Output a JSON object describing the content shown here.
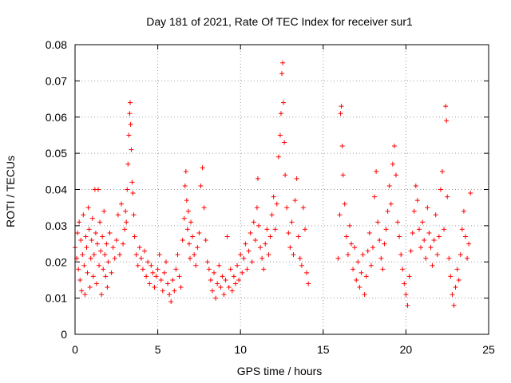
{
  "chart_data": {
    "type": "scatter",
    "title": "Day 181 of 2021, Rate Of TEC Index for receiver sur1",
    "xlabel": "GPS time / hours",
    "ylabel": "ROTI / TECUs",
    "xlim": [
      0,
      25
    ],
    "ylim": [
      0,
      0.08
    ],
    "xticks": [
      "0",
      "5",
      "10",
      "15",
      "20",
      "25"
    ],
    "yticks": [
      "0",
      "0.01",
      "0.02",
      "0.03",
      "0.04",
      "0.05",
      "0.06",
      "0.07",
      "0.08"
    ],
    "grid": true,
    "marker": "plus",
    "color": "#ff0000",
    "series": [
      {
        "points": [
          [
            0.0,
            0.024
          ],
          [
            0.1,
            0.021
          ],
          [
            0.15,
            0.028
          ],
          [
            0.2,
            0.018
          ],
          [
            0.25,
            0.031
          ],
          [
            0.3,
            0.015
          ],
          [
            0.35,
            0.026
          ],
          [
            0.4,
            0.012
          ],
          [
            0.45,
            0.022
          ],
          [
            0.5,
            0.033
          ],
          [
            0.55,
            0.019
          ],
          [
            0.6,
            0.011
          ],
          [
            0.65,
            0.027
          ],
          [
            0.7,
            0.024
          ],
          [
            0.75,
            0.017
          ],
          [
            0.8,
            0.035
          ],
          [
            0.85,
            0.029
          ],
          [
            0.9,
            0.013
          ],
          [
            0.95,
            0.021
          ],
          [
            1.0,
            0.026
          ],
          [
            1.05,
            0.032
          ],
          [
            1.1,
            0.016
          ],
          [
            1.15,
            0.022
          ],
          [
            1.2,
            0.04
          ],
          [
            1.25,
            0.028
          ],
          [
            1.3,
            0.014
          ],
          [
            1.35,
            0.025
          ],
          [
            1.4,
            0.04
          ],
          [
            1.45,
            0.019
          ],
          [
            1.5,
            0.031
          ],
          [
            1.55,
            0.023
          ],
          [
            1.6,
            0.011
          ],
          [
            1.65,
            0.027
          ],
          [
            1.7,
            0.018
          ],
          [
            1.75,
            0.034
          ],
          [
            1.8,
            0.022
          ],
          [
            1.85,
            0.016
          ],
          [
            1.9,
            0.025
          ],
          [
            1.95,
            0.013
          ],
          [
            2.0,
            0.02
          ],
          [
            2.1,
            0.028
          ],
          [
            2.2,
            0.017
          ],
          [
            2.3,
            0.024
          ],
          [
            2.4,
            0.021
          ],
          [
            2.5,
            0.026
          ],
          [
            2.6,
            0.033
          ],
          [
            2.7,
            0.022
          ],
          [
            2.8,
            0.036
          ],
          [
            2.9,
            0.025
          ],
          [
            3.0,
            0.029
          ],
          [
            3.05,
            0.034
          ],
          [
            3.1,
            0.031
          ],
          [
            3.15,
            0.04
          ],
          [
            3.2,
            0.047
          ],
          [
            3.25,
            0.055
          ],
          [
            3.3,
            0.061
          ],
          [
            3.33,
            0.064
          ],
          [
            3.36,
            0.058
          ],
          [
            3.4,
            0.051
          ],
          [
            3.45,
            0.042
          ],
          [
            3.5,
            0.039
          ],
          [
            3.55,
            0.033
          ],
          [
            3.6,
            0.027
          ],
          [
            3.7,
            0.022
          ],
          [
            3.8,
            0.019
          ],
          [
            3.9,
            0.024
          ],
          [
            4.0,
            0.021
          ],
          [
            4.1,
            0.018
          ],
          [
            4.2,
            0.023
          ],
          [
            4.3,
            0.016
          ],
          [
            4.4,
            0.02
          ],
          [
            4.5,
            0.014
          ],
          [
            4.6,
            0.019
          ],
          [
            4.7,
            0.017
          ],
          [
            4.8,
            0.013
          ],
          [
            4.9,
            0.016
          ],
          [
            5.0,
            0.018
          ],
          [
            5.1,
            0.022
          ],
          [
            5.2,
            0.015
          ],
          [
            5.3,
            0.012
          ],
          [
            5.4,
            0.017
          ],
          [
            5.5,
            0.02
          ],
          [
            5.6,
            0.014
          ],
          [
            5.7,
            0.011
          ],
          [
            5.8,
            0.009
          ],
          [
            5.9,
            0.015
          ],
          [
            6.0,
            0.012
          ],
          [
            6.1,
            0.018
          ],
          [
            6.2,
            0.022
          ],
          [
            6.3,
            0.016
          ],
          [
            6.4,
            0.013
          ],
          [
            6.5,
            0.026
          ],
          [
            6.6,
            0.032
          ],
          [
            6.65,
            0.041
          ],
          [
            6.7,
            0.045
          ],
          [
            6.75,
            0.037
          ],
          [
            6.8,
            0.029
          ],
          [
            6.85,
            0.034
          ],
          [
            6.9,
            0.025
          ],
          [
            6.95,
            0.021
          ],
          [
            7.0,
            0.031
          ],
          [
            7.1,
            0.027
          ],
          [
            7.2,
            0.022
          ],
          [
            7.3,
            0.019
          ],
          [
            7.4,
            0.024
          ],
          [
            7.5,
            0.028
          ],
          [
            7.6,
            0.041
          ],
          [
            7.7,
            0.046
          ],
          [
            7.8,
            0.035
          ],
          [
            7.9,
            0.026
          ],
          [
            8.0,
            0.02
          ],
          [
            8.1,
            0.018
          ],
          [
            8.2,
            0.015
          ],
          [
            8.3,
            0.012
          ],
          [
            8.4,
            0.017
          ],
          [
            8.5,
            0.01
          ],
          [
            8.6,
            0.014
          ],
          [
            8.7,
            0.019
          ],
          [
            8.8,
            0.013
          ],
          [
            8.9,
            0.016
          ],
          [
            9.0,
            0.011
          ],
          [
            9.1,
            0.015
          ],
          [
            9.2,
            0.027
          ],
          [
            9.3,
            0.013
          ],
          [
            9.4,
            0.018
          ],
          [
            9.5,
            0.012
          ],
          [
            9.6,
            0.016
          ],
          [
            9.7,
            0.014
          ],
          [
            9.8,
            0.019
          ],
          [
            9.9,
            0.015
          ],
          [
            10.0,
            0.022
          ],
          [
            10.1,
            0.017
          ],
          [
            10.2,
            0.021
          ],
          [
            10.3,
            0.025
          ],
          [
            10.4,
            0.018
          ],
          [
            10.5,
            0.023
          ],
          [
            10.6,
            0.028
          ],
          [
            10.7,
            0.02
          ],
          [
            10.8,
            0.031
          ],
          [
            10.9,
            0.026
          ],
          [
            11.0,
            0.035
          ],
          [
            11.05,
            0.043
          ],
          [
            11.1,
            0.03
          ],
          [
            11.2,
            0.024
          ],
          [
            11.3,
            0.021
          ],
          [
            11.4,
            0.018
          ],
          [
            11.5,
            0.025
          ],
          [
            11.6,
            0.029
          ],
          [
            11.7,
            0.022
          ],
          [
            11.8,
            0.027
          ],
          [
            11.9,
            0.033
          ],
          [
            12.0,
            0.038
          ],
          [
            12.1,
            0.029
          ],
          [
            12.2,
            0.036
          ],
          [
            12.3,
            0.049
          ],
          [
            12.4,
            0.055
          ],
          [
            12.45,
            0.061
          ],
          [
            12.5,
            0.072
          ],
          [
            12.55,
            0.075
          ],
          [
            12.6,
            0.064
          ],
          [
            12.65,
            0.053
          ],
          [
            12.7,
            0.044
          ],
          [
            12.8,
            0.035
          ],
          [
            12.9,
            0.028
          ],
          [
            13.0,
            0.024
          ],
          [
            13.1,
            0.031
          ],
          [
            13.2,
            0.022
          ],
          [
            13.3,
            0.037
          ],
          [
            13.4,
            0.043
          ],
          [
            13.5,
            0.027
          ],
          [
            13.6,
            0.021
          ],
          [
            13.7,
            0.019
          ],
          [
            13.8,
            0.035
          ],
          [
            13.9,
            0.029
          ],
          [
            14.0,
            0.017
          ],
          [
            14.1,
            0.014
          ],
          [
            15.9,
            0.021
          ],
          [
            16.0,
            0.033
          ],
          [
            16.05,
            0.061
          ],
          [
            16.1,
            0.063
          ],
          [
            16.15,
            0.052
          ],
          [
            16.2,
            0.044
          ],
          [
            16.3,
            0.036
          ],
          [
            16.4,
            0.027
          ],
          [
            16.5,
            0.022
          ],
          [
            16.6,
            0.03
          ],
          [
            16.7,
            0.025
          ],
          [
            16.8,
            0.018
          ],
          [
            16.9,
            0.024
          ],
          [
            17.0,
            0.015
          ],
          [
            17.1,
            0.02
          ],
          [
            17.2,
            0.013
          ],
          [
            17.3,
            0.017
          ],
          [
            17.4,
            0.022
          ],
          [
            17.5,
            0.011
          ],
          [
            17.6,
            0.016
          ],
          [
            17.7,
            0.023
          ],
          [
            17.8,
            0.028
          ],
          [
            17.9,
            0.019
          ],
          [
            18.0,
            0.024
          ],
          [
            18.1,
            0.038
          ],
          [
            18.2,
            0.045
          ],
          [
            18.3,
            0.031
          ],
          [
            18.4,
            0.026
          ],
          [
            18.5,
            0.021
          ],
          [
            18.6,
            0.018
          ],
          [
            18.7,
            0.025
          ],
          [
            18.8,
            0.029
          ],
          [
            18.9,
            0.034
          ],
          [
            19.0,
            0.041
          ],
          [
            19.1,
            0.036
          ],
          [
            19.2,
            0.047
          ],
          [
            19.3,
            0.052
          ],
          [
            19.4,
            0.044
          ],
          [
            19.5,
            0.031
          ],
          [
            19.6,
            0.027
          ],
          [
            19.7,
            0.022
          ],
          [
            19.8,
            0.018
          ],
          [
            19.9,
            0.014
          ],
          [
            20.0,
            0.011
          ],
          [
            20.1,
            0.008
          ],
          [
            20.2,
            0.016
          ],
          [
            20.3,
            0.023
          ],
          [
            20.4,
            0.028
          ],
          [
            20.5,
            0.034
          ],
          [
            20.6,
            0.041
          ],
          [
            20.7,
            0.037
          ],
          [
            20.8,
            0.029
          ],
          [
            20.9,
            0.024
          ],
          [
            21.0,
            0.031
          ],
          [
            21.1,
            0.026
          ],
          [
            21.2,
            0.021
          ],
          [
            21.3,
            0.035
          ],
          [
            21.4,
            0.028
          ],
          [
            21.5,
            0.024
          ],
          [
            21.6,
            0.019
          ],
          [
            21.7,
            0.026
          ],
          [
            21.8,
            0.033
          ],
          [
            21.9,
            0.022
          ],
          [
            22.0,
            0.027
          ],
          [
            22.1,
            0.04
          ],
          [
            22.2,
            0.045
          ],
          [
            22.3,
            0.029
          ],
          [
            22.4,
            0.063
          ],
          [
            22.45,
            0.059
          ],
          [
            22.5,
            0.038
          ],
          [
            22.6,
            0.021
          ],
          [
            22.7,
            0.016
          ],
          [
            22.8,
            0.011
          ],
          [
            22.9,
            0.008
          ],
          [
            23.0,
            0.013
          ],
          [
            23.1,
            0.018
          ],
          [
            23.2,
            0.015
          ],
          [
            23.3,
            0.022
          ],
          [
            23.4,
            0.029
          ],
          [
            23.5,
            0.034
          ],
          [
            23.6,
            0.027
          ],
          [
            23.7,
            0.021
          ],
          [
            23.8,
            0.025
          ],
          [
            23.9,
            0.039
          ]
        ]
      }
    ]
  }
}
